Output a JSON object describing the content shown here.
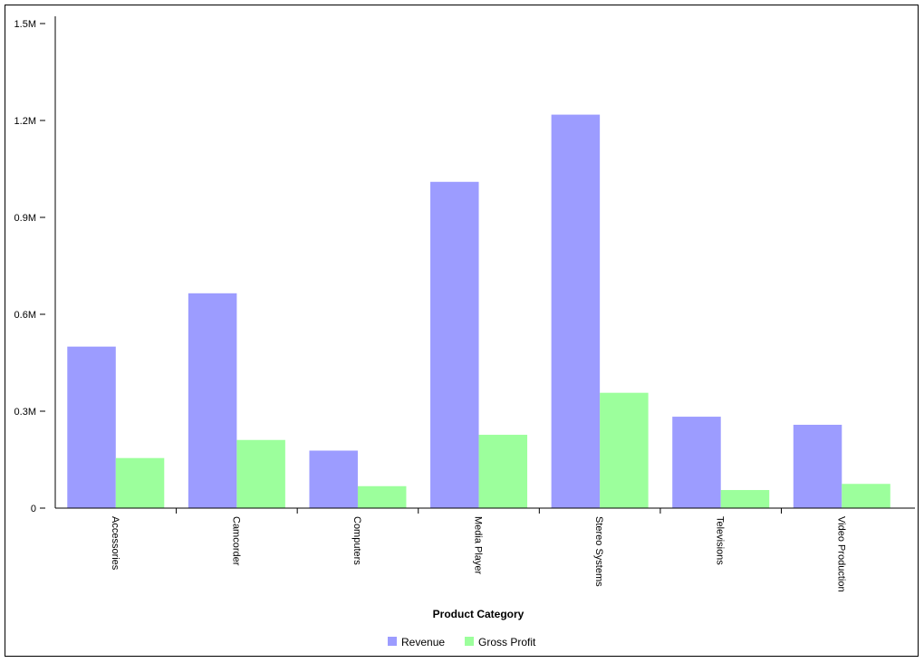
{
  "chart_data": {
    "type": "bar",
    "categories": [
      "Accessories",
      "Camcorder",
      "Computers",
      "Media Player",
      "Stereo Systems",
      "Televisions",
      "Video Production"
    ],
    "series": [
      {
        "name": "Revenue",
        "color": "#9c9cff",
        "values": [
          500000,
          665000,
          178000,
          1010000,
          1218000,
          283000,
          258000
        ]
      },
      {
        "name": "Gross Profit",
        "color": "#9cff9c",
        "values": [
          155000,
          211000,
          68000,
          227000,
          357000,
          56000,
          75000
        ]
      }
    ],
    "y_ticks": [
      {
        "value": 0,
        "label": "0"
      },
      {
        "value": 300000,
        "label": "0.3M"
      },
      {
        "value": 600000,
        "label": "0.6M"
      },
      {
        "value": 900000,
        "label": "0.9M"
      },
      {
        "value": 1200000,
        "label": "1.2M"
      },
      {
        "value": 1500000,
        "label": "1.5M"
      }
    ],
    "ylim": [
      0,
      1500000
    ],
    "xlabel": "Product Category",
    "ylabel": "",
    "grid": false,
    "legend_position": "bottom-center"
  }
}
